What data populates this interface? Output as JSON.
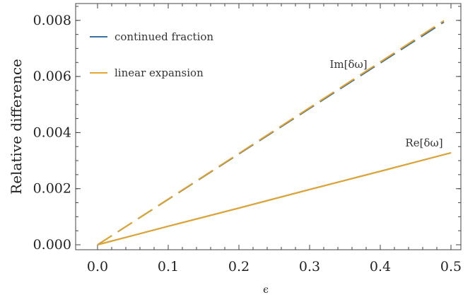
{
  "chart_data": {
    "type": "line",
    "xlabel": "ϵ",
    "ylabel": "Relative difference",
    "xlim": [
      0.0,
      0.5
    ],
    "ylim": [
      0.0,
      0.0085
    ],
    "xticks": [
      0.0,
      0.1,
      0.2,
      0.3,
      0.4,
      0.5
    ],
    "xtick_labels": [
      "0.0",
      "0.1",
      "0.2",
      "0.3",
      "0.4",
      "0.5"
    ],
    "yticks": [
      0.0,
      0.002,
      0.004,
      0.006,
      0.008
    ],
    "ytick_labels": [
      "0.000",
      "0.002",
      "0.004",
      "0.006",
      "0.008"
    ],
    "grid": false,
    "legend_position": "top-left",
    "legend": [
      {
        "label": "continued fraction",
        "color": "#3b6fa3"
      },
      {
        "label": "linear expansion",
        "color": "#e3a52b"
      }
    ],
    "series": [
      {
        "name": "continued fraction",
        "component": "Im[δω]",
        "style": "dashed",
        "color": "#3b6fa3",
        "x": [
          0.0,
          0.1,
          0.2,
          0.3,
          0.4,
          0.49
        ],
        "y": [
          0.0,
          0.00162,
          0.00324,
          0.00486,
          0.00648,
          0.00794
        ]
      },
      {
        "name": "linear expansion",
        "component": "Im[δω]",
        "style": "dashed",
        "color": "#e3a52b",
        "x": [
          0.0,
          0.1,
          0.2,
          0.3,
          0.4,
          0.49
        ],
        "y": [
          0.0,
          0.00163,
          0.00326,
          0.00489,
          0.00652,
          0.00799
        ]
      },
      {
        "name": "continued fraction",
        "component": "Re[δω]",
        "style": "solid",
        "color": "#3b6fa3",
        "x": [
          0.0,
          0.1,
          0.2,
          0.3,
          0.4,
          0.5
        ],
        "y": [
          0.0,
          0.00066,
          0.00131,
          0.00197,
          0.00262,
          0.00328
        ]
      },
      {
        "name": "linear expansion",
        "component": "Re[δω]",
        "style": "solid",
        "color": "#e3a52b",
        "x": [
          0.0,
          0.1,
          0.2,
          0.3,
          0.4,
          0.5
        ],
        "y": [
          0.0,
          0.00066,
          0.00131,
          0.00197,
          0.00262,
          0.00328
        ]
      }
    ],
    "annotations": [
      {
        "text": "Im[δω]",
        "x": 0.355,
        "y": 0.0063
      },
      {
        "text": "Re[δω]",
        "x": 0.462,
        "y": 0.0035
      }
    ]
  }
}
